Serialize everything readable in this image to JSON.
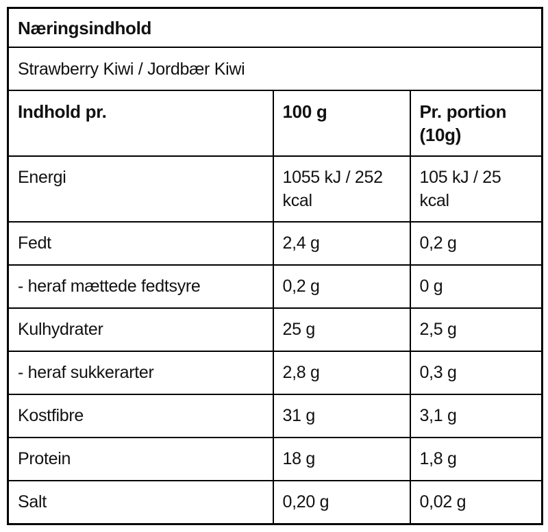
{
  "table": {
    "title": "Næringsindhold",
    "subtitle": "Strawberry Kiwi / Jordbær Kiwi",
    "columns": {
      "label": "Indhold pr.",
      "per100": "100 g",
      "portion": "Pr. portion (10g)"
    },
    "rows": [
      {
        "label": "Energi",
        "per100": "1055 kJ / 252 kcal",
        "portion": "105 kJ / 25 kcal"
      },
      {
        "label": "Fedt",
        "per100": "2,4 g",
        "portion": "0,2 g"
      },
      {
        "label": "- heraf mættede fedtsyre",
        "per100": "0,2 g",
        "portion": "0 g"
      },
      {
        "label": "Kulhydrater",
        "per100": "25 g",
        "portion": "2,5 g"
      },
      {
        "label": "- heraf sukkerarter",
        "per100": "2,8 g",
        "portion": "0,3 g"
      },
      {
        "label": "Kostfibre",
        "per100": "31 g",
        "portion": "3,1 g"
      },
      {
        "label": "Protein",
        "per100": "18 g",
        "portion": "1,8 g"
      },
      {
        "label": "Salt",
        "per100": "0,20 g",
        "portion": "0,02 g"
      }
    ],
    "colors": {
      "border": "#000000",
      "text": "#111111",
      "background": "#ffffff"
    }
  }
}
